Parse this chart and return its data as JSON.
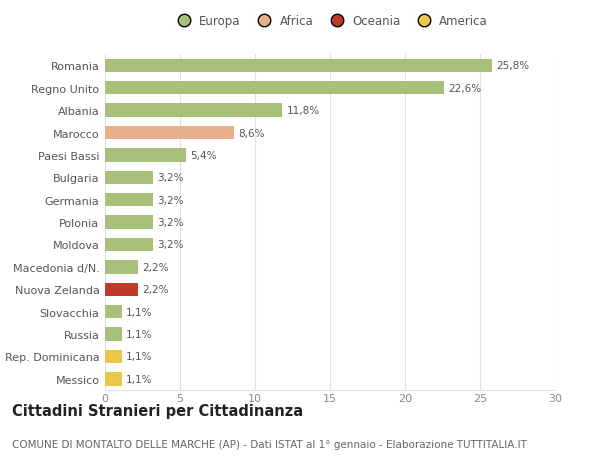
{
  "countries": [
    "Romania",
    "Regno Unito",
    "Albania",
    "Marocco",
    "Paesi Bassi",
    "Bulgaria",
    "Germania",
    "Polonia",
    "Moldova",
    "Macedonia d/N.",
    "Nuova Zelanda",
    "Slovacchia",
    "Russia",
    "Rep. Dominicana",
    "Messico"
  ],
  "values": [
    25.8,
    22.6,
    11.8,
    8.6,
    5.4,
    3.2,
    3.2,
    3.2,
    3.2,
    2.2,
    2.2,
    1.1,
    1.1,
    1.1,
    1.1
  ],
  "labels": [
    "25,8%",
    "22,6%",
    "11,8%",
    "8,6%",
    "5,4%",
    "3,2%",
    "3,2%",
    "3,2%",
    "3,2%",
    "2,2%",
    "2,2%",
    "1,1%",
    "1,1%",
    "1,1%",
    "1,1%"
  ],
  "continent": [
    "Europa",
    "Europa",
    "Europa",
    "Africa",
    "Europa",
    "Europa",
    "Europa",
    "Europa",
    "Europa",
    "Europa",
    "Oceania",
    "Europa",
    "Europa",
    "America",
    "America"
  ],
  "colors": {
    "Europa": "#a8c07a",
    "Africa": "#e8b08a",
    "Oceania": "#c0392b",
    "America": "#e8c84a"
  },
  "xlim": [
    0,
    30
  ],
  "xticks": [
    0,
    5,
    10,
    15,
    20,
    25,
    30
  ],
  "grid_color": "#e0e0e0",
  "background_color": "#ffffff",
  "title": "Cittadini Stranieri per Cittadinanza",
  "subtitle": "COMUNE DI MONTALTO DELLE MARCHE (AP) - Dati ISTAT al 1° gennaio - Elaborazione TUTTITALIA.IT",
  "title_fontsize": 10.5,
  "subtitle_fontsize": 7.5,
  "bar_height": 0.6,
  "label_fontsize": 7.5,
  "ytick_fontsize": 8,
  "legend_fontsize": 8.5
}
